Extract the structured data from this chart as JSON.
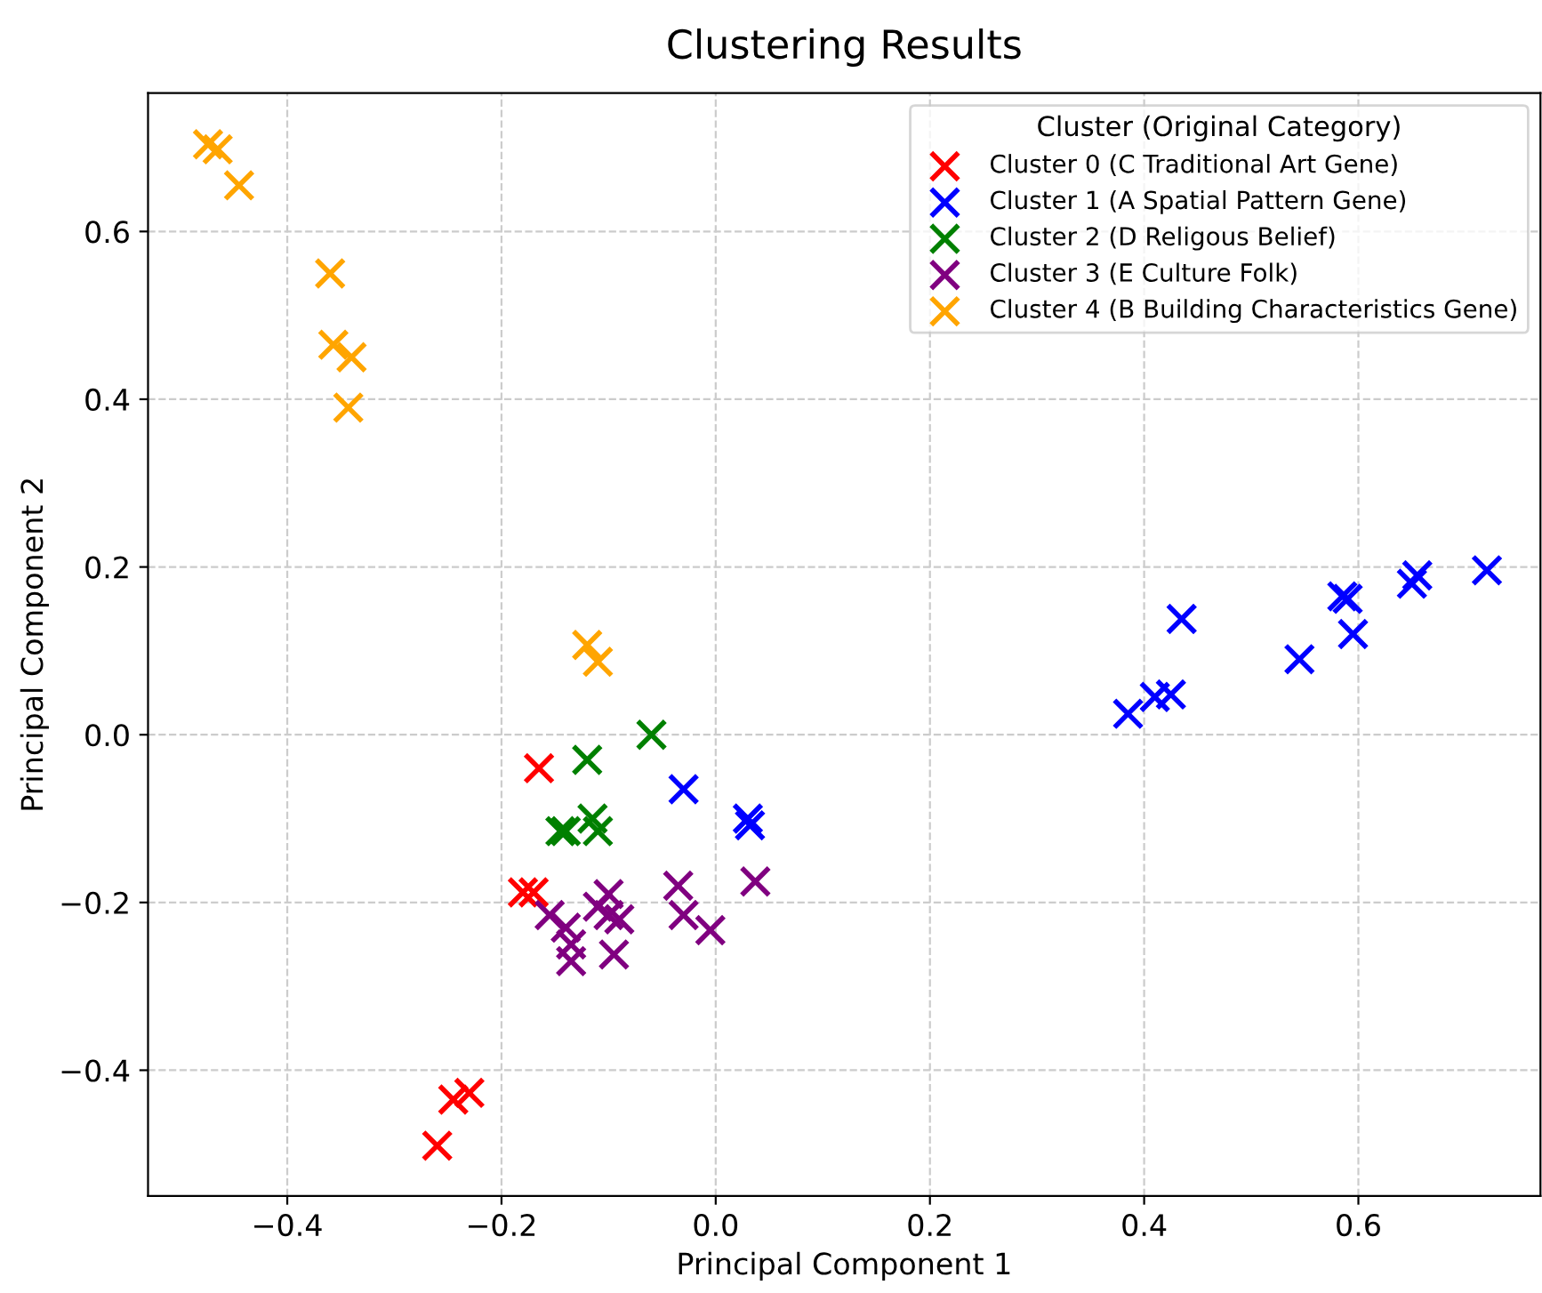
{
  "chart_data": {
    "type": "scatter",
    "title": "Clustering Results",
    "xlabel": "Principal Component 1",
    "ylabel": "Principal Component 2",
    "legend_title": "Cluster (Original Category)",
    "legend": "top right",
    "grid": true,
    "marker": "cross",
    "xlim": [
      -0.53,
      0.77
    ],
    "ylim": [
      -0.55,
      0.765
    ],
    "xticks": [
      {
        "value": -0.4,
        "label": "−0.4"
      },
      {
        "value": -0.2,
        "label": "−0.2"
      },
      {
        "value": 0,
        "label": "0.0"
      },
      {
        "value": 0.2,
        "label": "0.2"
      },
      {
        "value": 0.4,
        "label": "0.4"
      },
      {
        "value": 0.6,
        "label": "0.6"
      }
    ],
    "yticks": [
      {
        "value": -0.4,
        "label": "−0.4"
      },
      {
        "value": -0.2,
        "label": "−0.2"
      },
      {
        "value": 0,
        "label": "0.0"
      },
      {
        "value": 0.2,
        "label": "0.2"
      },
      {
        "value": 0.4,
        "label": "0.4"
      },
      {
        "value": 0.6,
        "label": "0.6"
      }
    ],
    "series": [
      {
        "name": "Cluster 0 (C Traditional Art Gene)",
        "color": "#ff0000",
        "x": [
          -0.165,
          -0.18,
          -0.17,
          -0.26,
          -0.245,
          -0.23
        ],
        "values": [
          -0.04,
          -0.188,
          -0.188,
          -0.49,
          -0.435,
          -0.427
        ]
      },
      {
        "name": "Cluster 1 (A Spatial Pattern Gene)",
        "color": "#0000ff",
        "x": [
          -0.03,
          0.03,
          0.032,
          0.385,
          0.41,
          0.425,
          0.435,
          0.545,
          0.585,
          0.59,
          0.595,
          0.65,
          0.655,
          0.72
        ],
        "values": [
          -0.065,
          -0.1,
          -0.108,
          0.025,
          0.045,
          0.048,
          0.138,
          0.09,
          0.165,
          0.162,
          0.12,
          0.18,
          0.19,
          0.196
        ]
      },
      {
        "name": "Cluster 2 (D Religous Belief)",
        "color": "#008000",
        "x": [
          -0.06,
          -0.12,
          -0.145,
          -0.14,
          -0.115,
          -0.11
        ],
        "values": [
          0.0,
          -0.03,
          -0.115,
          -0.115,
          -0.1,
          -0.115
        ]
      },
      {
        "name": "Cluster 3 (E Culture Folk)",
        "color": "#800080",
        "x": [
          -0.035,
          0.037,
          -0.03,
          -0.005,
          -0.155,
          -0.14,
          -0.135,
          -0.135,
          -0.13,
          -0.11,
          -0.1,
          -0.1,
          -0.09,
          -0.095
        ],
        "values": [
          -0.18,
          -0.175,
          -0.215,
          -0.233,
          -0.215,
          -0.23,
          -0.25,
          -0.27,
          null,
          -0.205,
          -0.19,
          -0.215,
          -0.22,
          -0.262
        ]
      },
      {
        "name": "Cluster 4 (B Building Characteristics Gene)",
        "color": "#ffa500",
        "x": [
          -0.474,
          -0.465,
          -0.445,
          -0.36,
          -0.357,
          -0.34,
          -0.343,
          -0.12,
          -0.11
        ],
        "values": [
          0.704,
          0.698,
          0.655,
          0.55,
          0.465,
          0.45,
          0.39,
          0.107,
          0.087
        ]
      }
    ]
  }
}
